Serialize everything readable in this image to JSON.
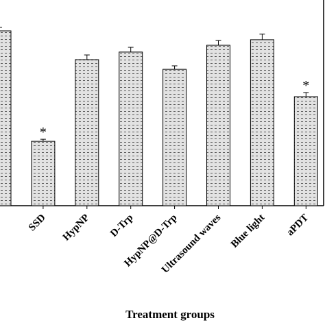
{
  "chart_data": {
    "type": "bar",
    "x_label": "Treatment groups",
    "categories": [
      null,
      "SSD",
      "HypNP",
      "D-Trp",
      "HypNP@D-Trp",
      "Ultrasound waves",
      "Blue light",
      "aPDT"
    ],
    "values": [
      85,
      31.3,
      71,
      74.7,
      66.3,
      78,
      80.7,
      53
    ],
    "errors": [
      1.7,
      1,
      2.3,
      2.3,
      1.7,
      2.3,
      2.7,
      2
    ],
    "annotations": [
      {
        "text": "*",
        "category": "SSD"
      },
      {
        "text": "*",
        "category": "aPDT"
      }
    ],
    "color": "#d9d9d9",
    "ylim": [
      0,
      100
    ]
  }
}
